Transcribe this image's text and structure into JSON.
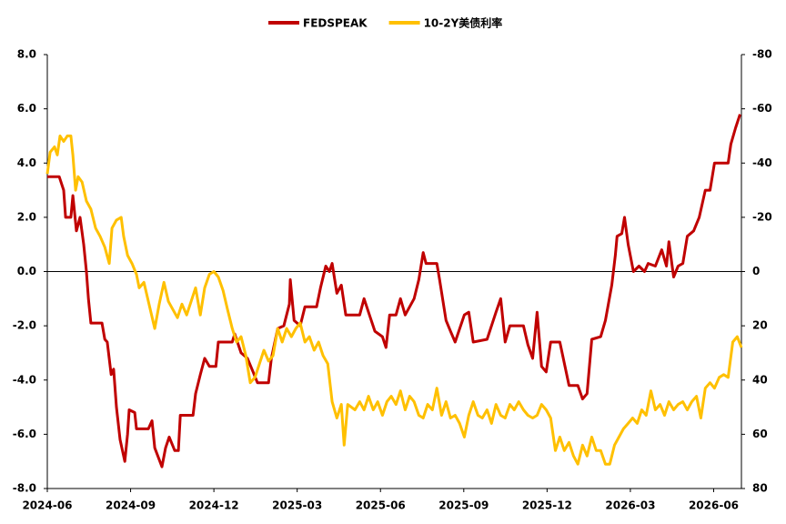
{
  "chart_data": {
    "type": "line",
    "xlim": [
      0,
      25
    ],
    "xticks": [
      {
        "value": 0,
        "label": "2024-06"
      },
      {
        "value": 3,
        "label": "2024-09"
      },
      {
        "value": 6,
        "label": "2024-12"
      },
      {
        "value": 9,
        "label": "2025-03"
      },
      {
        "value": 12,
        "label": "2025-06"
      },
      {
        "value": 15,
        "label": "2025-09"
      },
      {
        "value": 18,
        "label": "2025-12"
      },
      {
        "value": 21,
        "label": "2026-03"
      },
      {
        "value": 24,
        "label": "2026-06"
      }
    ],
    "ylim": [
      -8,
      8
    ],
    "yticks": [
      {
        "value": 8,
        "label": "8.0"
      },
      {
        "value": 6,
        "label": "6.0"
      },
      {
        "value": 4,
        "label": "4.0"
      },
      {
        "value": 2,
        "label": "2.0"
      },
      {
        "value": 0,
        "label": "0.0"
      },
      {
        "value": -2,
        "label": "-2.0"
      },
      {
        "value": -4,
        "label": "-4.0"
      },
      {
        "value": -6,
        "label": "-6.0"
      },
      {
        "value": -8,
        "label": "-8.0"
      }
    ],
    "negative_ytick_color": "#ff0000",
    "y2lim": [
      80,
      -80
    ],
    "y2ticks": [
      -80,
      -60,
      -40,
      -20,
      0,
      20,
      40,
      60,
      80
    ],
    "legend": "top",
    "series": [
      {
        "name": "FEDSPEAK",
        "color": "#c00000",
        "x": [
          0,
          0.43,
          0.59,
          0.66,
          0.85,
          0.92,
          1.05,
          1.18,
          1.31,
          1.41,
          1.48,
          1.57,
          1.97,
          2.07,
          2.16,
          2.3,
          2.39,
          2.49,
          2.62,
          2.79,
          2.89,
          2.95,
          3.15,
          3.21,
          3.64,
          3.77,
          3.87,
          4.13,
          4.26,
          4.39,
          4.59,
          4.72,
          4.79,
          5.25,
          5.34,
          5.51,
          5.67,
          5.84,
          6.07,
          6.16,
          6.66,
          6.75,
          6.98,
          7.21,
          7.41,
          7.57,
          7.97,
          8.07,
          8.3,
          8.52,
          8.72,
          8.75,
          8.89,
          9.11,
          9.28,
          9.7,
          9.84,
          10.03,
          10.16,
          10.26,
          10.43,
          10.59,
          10.75,
          11.25,
          11.41,
          11.57,
          11.8,
          12.07,
          12.2,
          12.33,
          12.56,
          12.72,
          12.89,
          13.21,
          13.38,
          13.54,
          13.64,
          14.03,
          14.13,
          14.36,
          14.52,
          14.69,
          15.02,
          15.18,
          15.34,
          15.84,
          16.16,
          16.33,
          16.49,
          16.66,
          17.15,
          17.31,
          17.48,
          17.64,
          17.8,
          17.97,
          18.13,
          18.46,
          18.79,
          19.11,
          19.28,
          19.44,
          19.61,
          19.93,
          20.1,
          20.33,
          20.46,
          20.52,
          20.69,
          20.79,
          20.92,
          21.11,
          21.31,
          21.51,
          21.64,
          21.9,
          22.13,
          22.3,
          22.39,
          22.56,
          22.72,
          22.89,
          23.05,
          23.28,
          23.48,
          23.7,
          23.87,
          24.03,
          24.52,
          24.62,
          24.79,
          24.95
        ],
        "values": [
          3.5,
          3.5,
          3.0,
          2.0,
          2.0,
          2.8,
          1.5,
          2.0,
          1.0,
          0.0,
          -1.0,
          -1.9,
          -1.9,
          -2.5,
          -2.6,
          -3.8,
          -3.6,
          -5.0,
          -6.2,
          -7.0,
          -6.0,
          -5.1,
          -5.2,
          -5.8,
          -5.8,
          -5.5,
          -6.5,
          -7.2,
          -6.5,
          -6.1,
          -6.6,
          -6.6,
          -5.3,
          -5.3,
          -4.5,
          -3.8,
          -3.2,
          -3.5,
          -3.5,
          -2.6,
          -2.6,
          -2.3,
          -3.0,
          -3.2,
          -3.7,
          -4.1,
          -4.1,
          -3.2,
          -2.1,
          -2.0,
          -1.2,
          -0.3,
          -1.8,
          -2.0,
          -1.3,
          -1.3,
          -0.6,
          0.2,
          0.0,
          0.3,
          -0.8,
          -0.5,
          -1.6,
          -1.6,
          -1.0,
          -1.5,
          -2.2,
          -2.4,
          -2.8,
          -1.6,
          -1.6,
          -1.0,
          -1.6,
          -1.0,
          -0.3,
          0.7,
          0.3,
          0.3,
          -0.3,
          -1.8,
          -2.2,
          -2.6,
          -1.6,
          -1.5,
          -2.6,
          -2.5,
          -1.5,
          -1.0,
          -2.6,
          -2.0,
          -2.0,
          -2.7,
          -3.2,
          -1.5,
          -3.5,
          -3.7,
          -2.6,
          -2.6,
          -4.2,
          -4.2,
          -4.7,
          -4.5,
          -2.5,
          -2.4,
          -1.8,
          -0.5,
          0.6,
          1.3,
          1.4,
          2.0,
          1.0,
          0.0,
          0.2,
          0.0,
          0.3,
          0.2,
          0.8,
          0.2,
          1.1,
          -0.2,
          0.2,
          0.3,
          1.3,
          1.5,
          2.0,
          3.0,
          3.0,
          4.0,
          4.0,
          4.7,
          5.3,
          5.8
        ]
      },
      {
        "name": "10-2Y美债利率",
        "color": "#ffc000",
        "axis": "y2",
        "x": [
          0,
          0.1,
          0.26,
          0.36,
          0.46,
          0.59,
          0.72,
          0.85,
          0.92,
          1.02,
          1.11,
          1.25,
          1.41,
          1.57,
          1.74,
          1.9,
          2.07,
          2.23,
          2.33,
          2.49,
          2.66,
          2.75,
          2.89,
          3.05,
          3.21,
          3.31,
          3.48,
          3.64,
          3.87,
          4.03,
          4.2,
          4.36,
          4.52,
          4.69,
          4.85,
          5.02,
          5.18,
          5.34,
          5.51,
          5.67,
          5.84,
          6.0,
          6.16,
          6.33,
          6.49,
          6.66,
          6.82,
          6.98,
          7.15,
          7.31,
          7.48,
          7.64,
          7.8,
          7.97,
          8.13,
          8.3,
          8.46,
          8.62,
          8.79,
          8.95,
          9.11,
          9.28,
          9.44,
          9.61,
          9.77,
          9.93,
          10.1,
          10.26,
          10.43,
          10.59,
          10.69,
          10.82,
          11.08,
          11.25,
          11.41,
          11.57,
          11.74,
          11.9,
          12.07,
          12.23,
          12.39,
          12.56,
          12.72,
          12.89,
          13.05,
          13.21,
          13.38,
          13.54,
          13.7,
          13.87,
          14.03,
          14.2,
          14.36,
          14.52,
          14.69,
          14.85,
          15.02,
          15.18,
          15.34,
          15.51,
          15.67,
          15.84,
          16.0,
          16.16,
          16.33,
          16.49,
          16.66,
          16.82,
          16.98,
          17.15,
          17.31,
          17.48,
          17.64,
          17.8,
          17.97,
          18.13,
          18.3,
          18.46,
          18.62,
          18.79,
          18.95,
          19.11,
          19.28,
          19.44,
          19.61,
          19.77,
          19.93,
          20.1,
          20.26,
          20.43,
          20.59,
          20.75,
          20.92,
          21.08,
          21.25,
          21.41,
          21.57,
          21.74,
          21.9,
          22.07,
          22.23,
          22.39,
          22.56,
          22.72,
          22.89,
          23.05,
          23.21,
          23.38,
          23.54,
          23.7,
          23.87,
          24.03,
          24.2,
          24.36,
          24.52,
          24.69,
          24.85,
          25.0
        ],
        "values": [
          -36,
          -44,
          -46,
          -43,
          -50,
          -48,
          -50,
          -50,
          -43,
          -30,
          -35,
          -33,
          -26,
          -23,
          -16,
          -13,
          -9,
          -3,
          -16,
          -19,
          -20,
          -13,
          -6,
          -3,
          1,
          6,
          4,
          11,
          21,
          12,
          4,
          11,
          14,
          17,
          12,
          16,
          11,
          6,
          16,
          6,
          1,
          0,
          2,
          7,
          14,
          21,
          26,
          24,
          31,
          41,
          39,
          34,
          29,
          33,
          31,
          21,
          26,
          21,
          24,
          21,
          19,
          26,
          24,
          29,
          26,
          31,
          34,
          48,
          54,
          49,
          64,
          49,
          51,
          48,
          51,
          46,
          51,
          48,
          53,
          48,
          46,
          49,
          44,
          51,
          46,
          48,
          53,
          54,
          49,
          51,
          43,
          53,
          48,
          54,
          53,
          56,
          61,
          53,
          48,
          53,
          54,
          51,
          56,
          49,
          53,
          54,
          49,
          51,
          48,
          51,
          53,
          54,
          53,
          49,
          51,
          54,
          66,
          61,
          66,
          63,
          68,
          71,
          64,
          68,
          61,
          66,
          66,
          71,
          71,
          64,
          61,
          58,
          56,
          54,
          56,
          51,
          53,
          44,
          51,
          49,
          53,
          48,
          51,
          49,
          48,
          51,
          48,
          46,
          54,
          43,
          41,
          43,
          39,
          38,
          39,
          26,
          24,
          28
        ]
      }
    ]
  }
}
